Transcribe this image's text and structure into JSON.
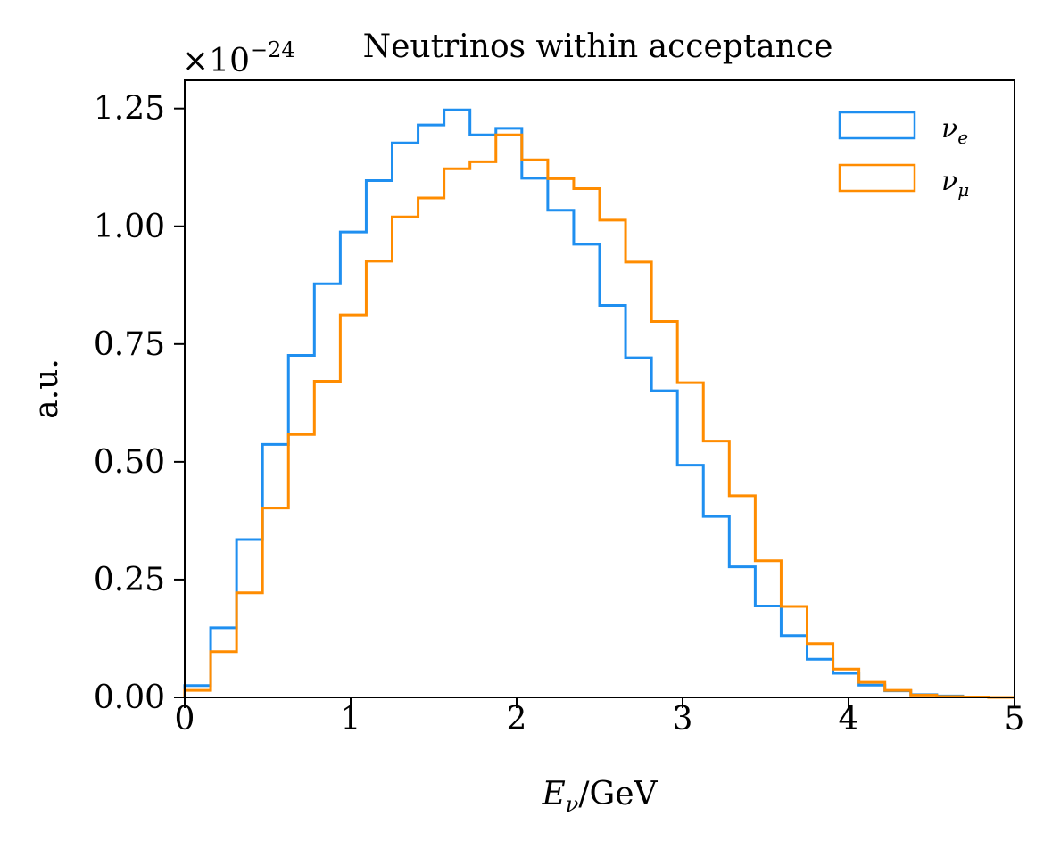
{
  "chart_data": {
    "type": "histogram",
    "title": "Neutrinos within acceptance",
    "scale_label": "×10",
    "scale_exponent": "−24",
    "xlabel_main": "E",
    "xlabel_sub": "ν",
    "xlabel_rest": "/GeV",
    "ylabel": "a.u.",
    "xlim": [
      0,
      5
    ],
    "ylim": [
      0,
      1.31
    ],
    "x_ticks": [
      0,
      1,
      2,
      3,
      4,
      5
    ],
    "x_tick_labels": [
      "0",
      "1",
      "2",
      "3",
      "4",
      "5"
    ],
    "y_ticks": [
      0,
      0.25,
      0.5,
      0.75,
      1.0,
      1.25
    ],
    "y_tick_labels": [
      "0.00",
      "0.25",
      "0.50",
      "0.75",
      "1.00",
      "1.25"
    ],
    "bin_width": 0.15625,
    "bin_edges": [
      0,
      0.15625,
      0.3125,
      0.46875,
      0.625,
      0.78125,
      0.9375,
      1.09375,
      1.25,
      1.40625,
      1.5625,
      1.71875,
      1.875,
      2.03125,
      2.1875,
      2.34375,
      2.5,
      2.65625,
      2.8125,
      2.96875,
      3.125,
      3.28125,
      3.4375,
      3.59375,
      3.75,
      3.90625,
      4.0625,
      4.21875,
      4.375,
      4.53125,
      4.6875,
      4.84375,
      5.0
    ],
    "legend_position": "top-right",
    "series": [
      {
        "name_main": "ν",
        "name_sub": "e",
        "color": "#1f8ff0",
        "values": [
          0.025,
          0.148,
          0.335,
          0.537,
          0.726,
          0.878,
          0.988,
          1.097,
          1.177,
          1.215,
          1.247,
          1.194,
          1.208,
          1.102,
          1.034,
          0.962,
          0.832,
          0.721,
          0.651,
          0.493,
          0.384,
          0.277,
          0.194,
          0.131,
          0.081,
          0.051,
          0.026,
          0.014,
          0.006,
          0.003,
          0.001,
          0.0
        ]
      },
      {
        "name_main": "ν",
        "name_sub": "μ",
        "color": "#ff8c00",
        "values": [
          0.015,
          0.097,
          0.222,
          0.402,
          0.558,
          0.671,
          0.812,
          0.926,
          1.02,
          1.06,
          1.122,
          1.137,
          1.194,
          1.141,
          1.101,
          1.08,
          1.013,
          0.924,
          0.798,
          0.668,
          0.544,
          0.428,
          0.29,
          0.193,
          0.114,
          0.06,
          0.032,
          0.015,
          0.005,
          0.002,
          0.001,
          0.0
        ]
      }
    ]
  }
}
